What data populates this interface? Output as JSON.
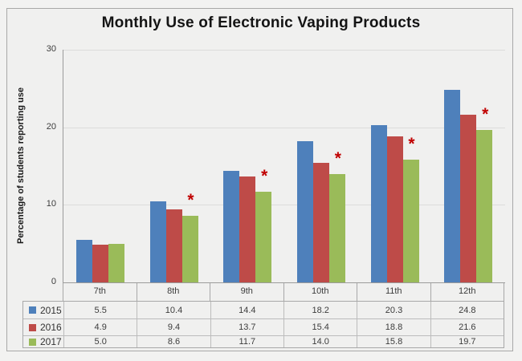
{
  "window": {
    "background": "#f2f2f1",
    "frame_background": "#f0f0ef",
    "frame_border": "#a8a8a8",
    "gridline_color": "#dcdcdb",
    "axis_color": "#9b9b9b"
  },
  "chart_data": {
    "type": "bar",
    "title": "Monthly Use of Electronic Vaping Products",
    "ylabel": "Percentage of students reporting use",
    "xlabel": "",
    "categories": [
      "7th",
      "8th",
      "9th",
      "10th",
      "11th",
      "12th"
    ],
    "series": [
      {
        "name": "2015",
        "color": "#4e80bb",
        "values": [
          5.5,
          10.4,
          14.4,
          18.2,
          20.3,
          24.8
        ]
      },
      {
        "name": "2016",
        "color": "#be4b48",
        "values": [
          4.9,
          9.4,
          13.7,
          15.4,
          18.8,
          21.6
        ]
      },
      {
        "name": "2017",
        "color": "#9abb59",
        "values": [
          5.0,
          8.6,
          11.7,
          14.0,
          15.8,
          19.7
        ]
      }
    ],
    "ylim": [
      0,
      30
    ],
    "yticks": [
      0,
      10,
      20,
      30
    ],
    "grid": "horizontal",
    "legend_position": "data-table-left-column",
    "data_table_shown": true,
    "annotations": {
      "symbol": "*",
      "color": "#c00000",
      "on_series": "2017",
      "categories": [
        "8th",
        "9th",
        "10th",
        "11th",
        "12th"
      ]
    }
  }
}
